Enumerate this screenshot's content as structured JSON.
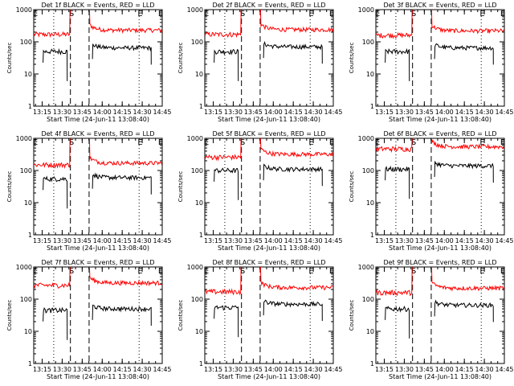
{
  "figure": {
    "ylabel": "Counts/sec",
    "xlabel": "Start Time (24-Jun-11 13:08:40)",
    "xticks": [
      "13:15",
      "13:30",
      "13:45",
      "14:00",
      "14:15",
      "14:30",
      "14:45"
    ],
    "yticks": [
      "1",
      "10",
      "100",
      "1000"
    ],
    "markers": {
      "start": "S",
      "end": "E"
    },
    "colors": {
      "events": "#000000",
      "lld": "#ff0000"
    }
  },
  "chart_data": [
    {
      "type": "line",
      "title": "Det 1f BLACK = Events, RED = LLD",
      "xlabel": "Start Time (24-Jun-11 13:08:40)",
      "ylabel": "Counts/sec",
      "ylim": [
        1,
        1000
      ],
      "yscale": "log",
      "series": [
        {
          "name": "Events",
          "before": 50,
          "after": 65
        },
        {
          "name": "LLD",
          "before": 170,
          "after": 230
        }
      ]
    },
    {
      "type": "line",
      "title": "Det 2f BLACK = Events, RED = LLD",
      "xlabel": "Start Time (24-Jun-11 13:08:40)",
      "ylabel": "Counts/sec",
      "ylim": [
        1,
        1000
      ],
      "yscale": "log",
      "series": [
        {
          "name": "Events",
          "before": 50,
          "after": 70
        },
        {
          "name": "LLD",
          "before": 170,
          "after": 240
        }
      ]
    },
    {
      "type": "line",
      "title": "Det 3f BLACK = Events, RED = LLD",
      "xlabel": "Start Time (24-Jun-11 13:08:40)",
      "ylabel": "Counts/sec",
      "ylim": [
        1,
        1000
      ],
      "yscale": "log",
      "series": [
        {
          "name": "Events",
          "before": 50,
          "after": 65
        },
        {
          "name": "LLD",
          "before": 160,
          "after": 220
        }
      ]
    },
    {
      "type": "line",
      "title": "Det 4f BLACK = Events, RED = LLD",
      "xlabel": "Start Time (24-Jun-11 13:08:40)",
      "ylabel": "Counts/sec",
      "ylim": [
        1,
        1000
      ],
      "yscale": "log",
      "series": [
        {
          "name": "Events",
          "before": 55,
          "after": 60
        },
        {
          "name": "LLD",
          "before": 150,
          "after": 170
        }
      ]
    },
    {
      "type": "line",
      "title": "Det 5f BLACK = Events, RED = LLD",
      "xlabel": "Start Time (24-Jun-11 13:08:40)",
      "ylabel": "Counts/sec",
      "ylim": [
        1,
        1000
      ],
      "yscale": "log",
      "series": [
        {
          "name": "Events",
          "before": 100,
          "after": 110
        },
        {
          "name": "LLD",
          "before": 260,
          "after": 320
        }
      ]
    },
    {
      "type": "line",
      "title": "Det 6f BLACK = Events, RED = LLD",
      "xlabel": "Start Time (24-Jun-11 13:08:40)",
      "ylabel": "Counts/sec",
      "ylim": [
        1,
        1000
      ],
      "yscale": "log",
      "series": [
        {
          "name": "Events",
          "before": 110,
          "after": 140
        },
        {
          "name": "LLD",
          "before": 470,
          "after": 550
        }
      ]
    },
    {
      "type": "line",
      "title": "Det 7f BLACK = Events, RED = LLD",
      "xlabel": "Start Time (24-Jun-11 13:08:40)",
      "ylabel": "Counts/sec",
      "ylim": [
        1,
        1000
      ],
      "yscale": "log",
      "series": [
        {
          "name": "Events",
          "before": 45,
          "after": 50
        },
        {
          "name": "LLD",
          "before": 270,
          "after": 320
        }
      ]
    },
    {
      "type": "line",
      "title": "Det 8f BLACK = Events, RED = LLD",
      "xlabel": "Start Time (24-Jun-11 13:08:40)",
      "ylabel": "Counts/sec",
      "ylim": [
        1,
        1000
      ],
      "yscale": "log",
      "series": [
        {
          "name": "Events",
          "before": 55,
          "after": 70
        },
        {
          "name": "LLD",
          "before": 170,
          "after": 230
        }
      ]
    },
    {
      "type": "line",
      "title": "Det 9f BLACK = Events, RED = LLD",
      "xlabel": "Start Time (24-Jun-11 13:08:40)",
      "ylabel": "Counts/sec",
      "ylim": [
        1,
        1000
      ],
      "yscale": "log",
      "series": [
        {
          "name": "Events",
          "before": 50,
          "after": 65
        },
        {
          "name": "LLD",
          "before": 160,
          "after": 220
        }
      ]
    }
  ]
}
